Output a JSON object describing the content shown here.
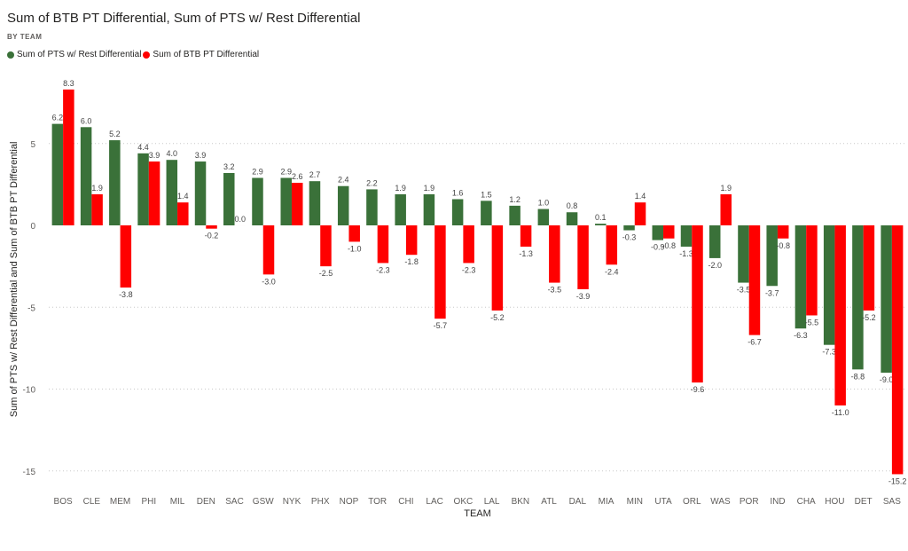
{
  "chart_data": {
    "type": "bar",
    "title": "Sum of BTB PT Differential, Sum of PTS w/ Rest Differential",
    "subtitle": "BY TEAM",
    "xlabel": "TEAM",
    "ylabel": "Sum of PTS w/ Rest Differential and Sum of BTB PT Differential",
    "ylim": [
      -16.5,
      9
    ],
    "yticks": [
      5,
      0,
      -5,
      -10,
      -15
    ],
    "grid": true,
    "legend_position": "top-left",
    "categories": [
      "BOS",
      "CLE",
      "MEM",
      "PHI",
      "MIL",
      "DEN",
      "SAC",
      "GSW",
      "NYK",
      "PHX",
      "NOP",
      "TOR",
      "CHI",
      "LAC",
      "OKC",
      "LAL",
      "BKN",
      "ATL",
      "DAL",
      "MIA",
      "MIN",
      "UTA",
      "ORL",
      "WAS",
      "POR",
      "IND",
      "CHA",
      "HOU",
      "DET",
      "SAS"
    ],
    "series": [
      {
        "name": "Sum of PTS w/ Rest Differential",
        "color": "#3a7139",
        "values": [
          6.2,
          6.0,
          5.2,
          4.4,
          4.0,
          3.9,
          3.2,
          2.9,
          2.9,
          2.7,
          2.4,
          2.2,
          1.9,
          1.9,
          1.6,
          1.5,
          1.2,
          1.0,
          0.8,
          0.1,
          -0.3,
          -0.9,
          -1.3,
          -2.0,
          -3.5,
          -3.7,
          -6.3,
          -7.3,
          -8.8,
          -9.0
        ]
      },
      {
        "name": "Sum of BTB PT Differential",
        "color": "#ff0000",
        "values": [
          8.3,
          1.9,
          -3.8,
          3.9,
          1.4,
          -0.2,
          0.0,
          -3.0,
          2.6,
          -2.5,
          -1.0,
          -2.3,
          -1.8,
          -5.7,
          -2.3,
          -5.2,
          -1.3,
          -3.5,
          -3.9,
          -2.4,
          1.4,
          -0.8,
          -9.6,
          1.9,
          -6.7,
          -0.8,
          -5.5,
          -11.0,
          -5.2,
          -15.2
        ]
      }
    ]
  }
}
